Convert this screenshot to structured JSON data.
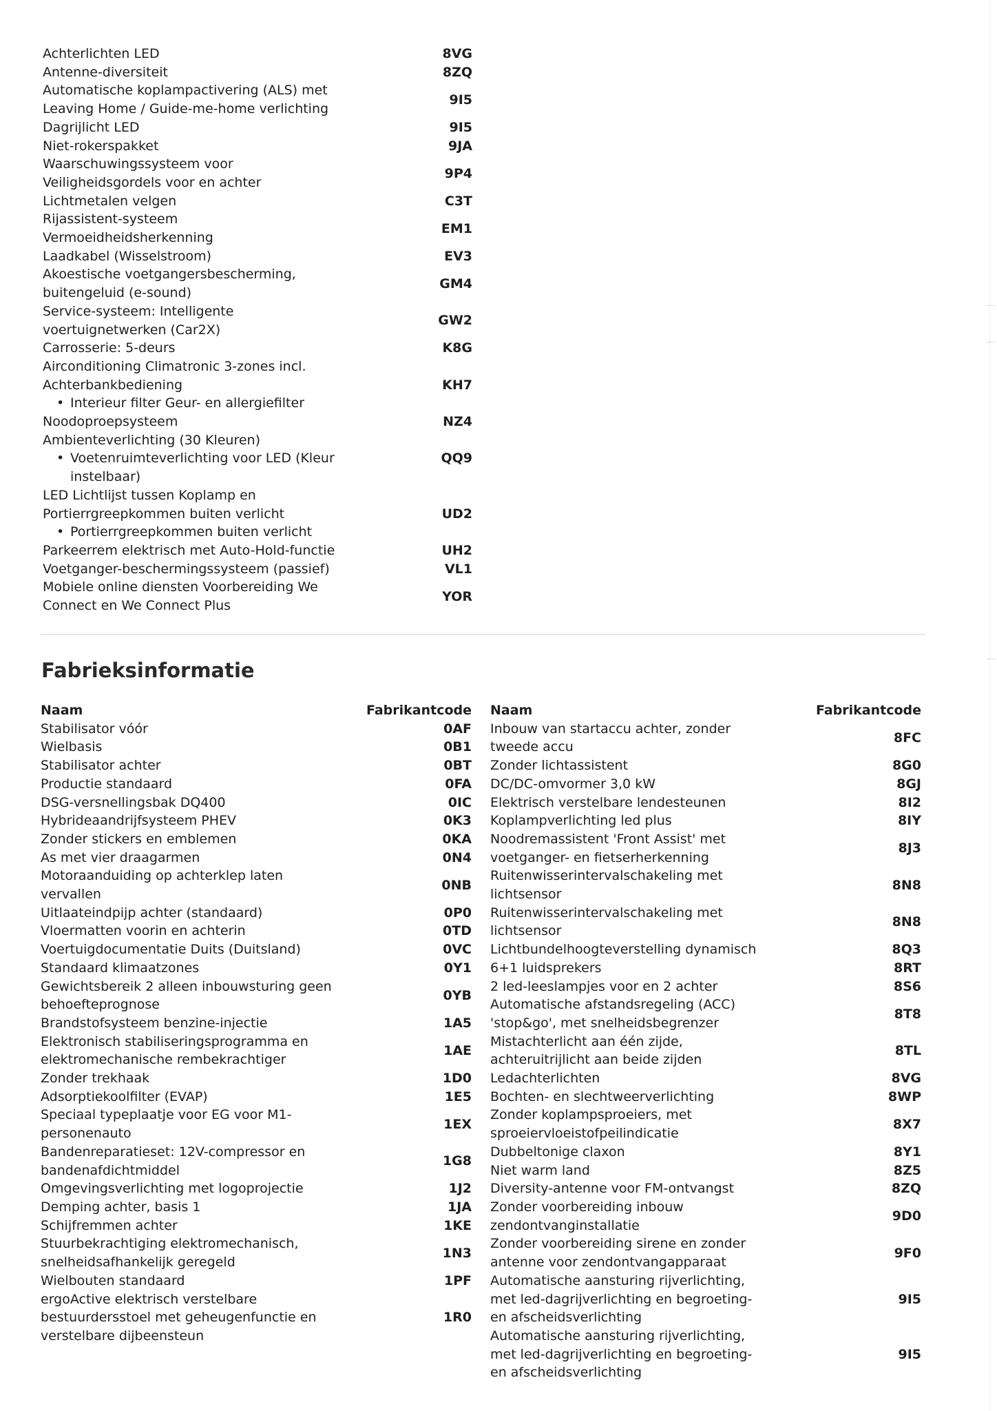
{
  "options": [
    {
      "lines": [
        {
          "t": "Achterlichten LED"
        }
      ],
      "code": "8VG"
    },
    {
      "lines": [
        {
          "t": "Antenne-diversiteit"
        }
      ],
      "code": "8ZQ"
    },
    {
      "lines": [
        {
          "t": "Automatische koplampactivering (ALS) met"
        },
        {
          "t": "Leaving Home / Guide-me-home verlichting"
        }
      ],
      "code": "9I5"
    },
    {
      "lines": [
        {
          "t": "Dagrijlicht LED"
        }
      ],
      "code": "9I5"
    },
    {
      "lines": [
        {
          "t": "Niet-rokerspakket"
        }
      ],
      "code": "9JA"
    },
    {
      "lines": [
        {
          "t": "Waarschuwingssysteem voor"
        },
        {
          "t": "Veiligheidsgordels voor en achter"
        }
      ],
      "code": "9P4"
    },
    {
      "lines": [
        {
          "t": "Lichtmetalen velgen"
        }
      ],
      "code": "C3T"
    },
    {
      "lines": [
        {
          "t": "Rijassistent-systeem"
        },
        {
          "t": "Vermoeidheidsherkenning"
        }
      ],
      "code": "EM1"
    },
    {
      "lines": [
        {
          "t": "Laadkabel (Wisselstroom)"
        }
      ],
      "code": "EV3"
    },
    {
      "lines": [
        {
          "t": "Akoestische voetgangersbescherming,"
        },
        {
          "t": "buitengeluid (e-sound)"
        }
      ],
      "code": "GM4"
    },
    {
      "lines": [
        {
          "t": "Service-systeem: Intelligente"
        },
        {
          "t": "voertuignetwerken (Car2X)"
        }
      ],
      "code": "GW2"
    },
    {
      "lines": [
        {
          "t": "Carrosserie: 5-deurs"
        }
      ],
      "code": "K8G"
    },
    {
      "lines": [
        {
          "t": "Airconditioning Climatronic 3-zones incl."
        },
        {
          "t": "Achterbankbediening"
        },
        {
          "t": "Interieur filter Geur- en allergiefilter",
          "bullet": true
        }
      ],
      "code": "KH7"
    },
    {
      "lines": [
        {
          "t": "Noodoproepsysteem"
        }
      ],
      "code": "NZ4"
    },
    {
      "lines": [
        {
          "t": "Ambienteverlichting (30 Kleuren)"
        },
        {
          "t": "Voetenruimteverlichting voor LED (Kleur",
          "bullet": true
        },
        {
          "t": "instelbaar)",
          "cont": true
        }
      ],
      "code": "QQ9"
    },
    {
      "lines": [
        {
          "t": "LED Lichtlijst tussen Koplamp en"
        },
        {
          "t": "Portierrgreepkommen buiten verlicht"
        },
        {
          "t": "Portierrgreepkommen buiten verlicht",
          "bullet": true
        }
      ],
      "code": "UD2"
    },
    {
      "lines": [
        {
          "t": "Parkeerrem elektrisch met Auto-Hold-functie"
        }
      ],
      "code": "UH2"
    },
    {
      "lines": [
        {
          "t": "Voetganger-beschermingssysteem (passief)"
        }
      ],
      "code": "VL1"
    },
    {
      "lines": [
        {
          "t": "Mobiele online diensten Voorbereiding We"
        },
        {
          "t": "Connect en We Connect Plus"
        }
      ],
      "code": "YOR"
    }
  ],
  "factory": {
    "title": "Fabrieksinformatie",
    "col_name": "Naam",
    "col_code": "Fabrikantcode",
    "left": [
      {
        "lines": [
          {
            "t": "Stabilisator vóór"
          }
        ],
        "code": "0AF"
      },
      {
        "lines": [
          {
            "t": "Wielbasis"
          }
        ],
        "code": "0B1"
      },
      {
        "lines": [
          {
            "t": "Stabilisator achter"
          }
        ],
        "code": "0BT"
      },
      {
        "lines": [
          {
            "t": "Productie standaard"
          }
        ],
        "code": "0FA"
      },
      {
        "lines": [
          {
            "t": "DSG-versnellingsbak DQ400"
          }
        ],
        "code": "0IC"
      },
      {
        "lines": [
          {
            "t": "Hybrideaandrijfsysteem PHEV"
          }
        ],
        "code": "0K3"
      },
      {
        "lines": [
          {
            "t": "Zonder stickers en emblemen"
          }
        ],
        "code": "0KA"
      },
      {
        "lines": [
          {
            "t": "As met vier draagarmen"
          }
        ],
        "code": "0N4"
      },
      {
        "lines": [
          {
            "t": "Motoraanduiding op achterklep laten"
          },
          {
            "t": "vervallen"
          }
        ],
        "code": "0NB"
      },
      {
        "lines": [
          {
            "t": "Uitlaateindpijp achter (standaard)"
          }
        ],
        "code": "0P0"
      },
      {
        "lines": [
          {
            "t": "Vloermatten voorin en achterin"
          }
        ],
        "code": "0TD"
      },
      {
        "lines": [
          {
            "t": "Voertuigdocumentatie Duits (Duitsland)"
          }
        ],
        "code": "0VC"
      },
      {
        "lines": [
          {
            "t": "Standaard klimaatzones"
          }
        ],
        "code": "0Y1"
      },
      {
        "lines": [
          {
            "t": "Gewichtsbereik 2 alleen inbouwsturing geen"
          },
          {
            "t": "behoefteprognose"
          }
        ],
        "code": "0YB"
      },
      {
        "lines": [
          {
            "t": "Brandstofsysteem benzine-injectie"
          }
        ],
        "code": "1A5"
      },
      {
        "lines": [
          {
            "t": "Elektronisch stabiliseringsprogramma en"
          },
          {
            "t": "elektromechanische rembekrachtiger"
          }
        ],
        "code": "1AE"
      },
      {
        "lines": [
          {
            "t": "Zonder trekhaak"
          }
        ],
        "code": "1D0"
      },
      {
        "lines": [
          {
            "t": "Adsorptiekoolfilter (EVAP)"
          }
        ],
        "code": "1E5"
      },
      {
        "lines": [
          {
            "t": "Speciaal typeplaatje voor EG voor M1-"
          },
          {
            "t": "personenauto"
          }
        ],
        "code": "1EX"
      },
      {
        "lines": [
          {
            "t": "Bandenreparatieset: 12V-compressor en"
          },
          {
            "t": "bandenafdichtmiddel"
          }
        ],
        "code": "1G8"
      },
      {
        "lines": [
          {
            "t": "Omgevingsverlichting met logoprojectie"
          }
        ],
        "code": "1J2"
      },
      {
        "lines": [
          {
            "t": "Demping achter, basis 1"
          }
        ],
        "code": "1JA"
      },
      {
        "lines": [
          {
            "t": "Schijfremmen achter"
          }
        ],
        "code": "1KE"
      },
      {
        "lines": [
          {
            "t": "Stuurbekrachtiging elektromechanisch,"
          },
          {
            "t": "snelheidsafhankelijk geregeld"
          }
        ],
        "code": "1N3"
      },
      {
        "lines": [
          {
            "t": "Wielbouten standaard"
          }
        ],
        "code": "1PF"
      },
      {
        "lines": [
          {
            "t": "ergoActive elektrisch verstelbare"
          },
          {
            "t": "bestuurdersstoel met geheugenfunctie en"
          },
          {
            "t": "verstelbare dijbeensteun"
          }
        ],
        "code": "1R0"
      }
    ],
    "right": [
      {
        "lines": [
          {
            "t": "Inbouw van startaccu achter, zonder"
          },
          {
            "t": "tweede accu"
          }
        ],
        "code": "8FC"
      },
      {
        "lines": [
          {
            "t": "Zonder lichtassistent"
          }
        ],
        "code": "8G0"
      },
      {
        "lines": [
          {
            "t": "DC/DC-omvormer 3,0 kW"
          }
        ],
        "code": "8GJ"
      },
      {
        "lines": [
          {
            "t": "Elektrisch verstelbare lendesteunen"
          }
        ],
        "code": "8I2"
      },
      {
        "lines": [
          {
            "t": "Koplampverlichting led plus"
          }
        ],
        "code": "8IY"
      },
      {
        "lines": [
          {
            "t": "Noodremassistent 'Front Assist' met"
          },
          {
            "t": "voetganger- en fietserherkenning"
          }
        ],
        "code": "8J3"
      },
      {
        "lines": [
          {
            "t": "Ruitenwisserintervalschakeling met"
          },
          {
            "t": "lichtsensor"
          }
        ],
        "code": "8N8"
      },
      {
        "lines": [
          {
            "t": "Ruitenwisserintervalschakeling met"
          },
          {
            "t": "lichtsensor"
          }
        ],
        "code": "8N8"
      },
      {
        "lines": [
          {
            "t": "Lichtbundelhoogteverstelling dynamisch"
          }
        ],
        "code": "8Q3"
      },
      {
        "lines": [
          {
            "t": "6+1 luidsprekers"
          }
        ],
        "code": "8RT"
      },
      {
        "lines": [
          {
            "t": "2 led-leeslampjes voor en 2 achter"
          }
        ],
        "code": "8S6"
      },
      {
        "lines": [
          {
            "t": "Automatische afstandsregeling (ACC)"
          },
          {
            "t": "'stop&go', met snelheidsbegrenzer"
          }
        ],
        "code": "8T8"
      },
      {
        "lines": [
          {
            "t": "Mistachterlicht aan één zijde,"
          },
          {
            "t": "achteruitrijlicht aan beide zijden"
          }
        ],
        "code": "8TL"
      },
      {
        "lines": [
          {
            "t": "Ledachterlichten"
          }
        ],
        "code": "8VG"
      },
      {
        "lines": [
          {
            "t": "Bochten- en slechtweerverlichting"
          }
        ],
        "code": "8WP"
      },
      {
        "lines": [
          {
            "t": "Zonder koplampsproeiers, met"
          },
          {
            "t": "sproeiervloeistofpeilindicatie"
          }
        ],
        "code": "8X7"
      },
      {
        "lines": [
          {
            "t": "Dubbeltonige claxon"
          }
        ],
        "code": "8Y1"
      },
      {
        "lines": [
          {
            "t": "Niet warm land"
          }
        ],
        "code": "8Z5"
      },
      {
        "lines": [
          {
            "t": "Diversity-antenne voor FM-ontvangst"
          }
        ],
        "code": "8ZQ"
      },
      {
        "lines": [
          {
            "t": "Zonder voorbereiding inbouw"
          },
          {
            "t": "zendontvanginstallatie"
          }
        ],
        "code": "9D0"
      },
      {
        "lines": [
          {
            "t": "Zonder voorbereiding sirene en zonder"
          },
          {
            "t": "antenne voor zendontvangapparaat"
          }
        ],
        "code": "9F0"
      },
      {
        "lines": [
          {
            "t": "Automatische aansturing rijverlichting,"
          },
          {
            "t": "met led-dagrijverlichting en begroeting-"
          },
          {
            "t": "en afscheidsverlichting"
          }
        ],
        "code": "9I5"
      },
      {
        "lines": [
          {
            "t": "Automatische aansturing rijverlichting,"
          },
          {
            "t": "met led-dagrijverlichting en begroeting-"
          },
          {
            "t": "en afscheidsverlichting"
          }
        ],
        "code": "9I5"
      }
    ]
  }
}
